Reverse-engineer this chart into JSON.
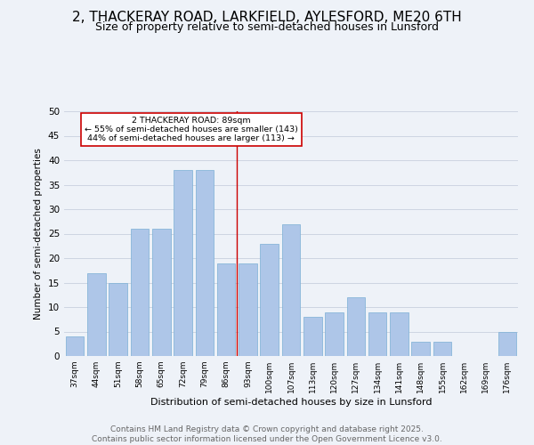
{
  "title": "2, THACKERAY ROAD, LARKFIELD, AYLESFORD, ME20 6TH",
  "subtitle": "Size of property relative to semi-detached houses in Lunsford",
  "xlabel": "Distribution of semi-detached houses by size in Lunsford",
  "ylabel": "Number of semi-detached properties",
  "categories": [
    "37sqm",
    "44sqm",
    "51sqm",
    "58sqm",
    "65sqm",
    "72sqm",
    "79sqm",
    "86sqm",
    "93sqm",
    "100sqm",
    "107sqm",
    "113sqm",
    "120sqm",
    "127sqm",
    "134sqm",
    "141sqm",
    "148sqm",
    "155sqm",
    "162sqm",
    "169sqm",
    "176sqm"
  ],
  "values": [
    4,
    17,
    15,
    26,
    26,
    38,
    38,
    19,
    19,
    23,
    27,
    8,
    9,
    12,
    9,
    9,
    3,
    3,
    0,
    0,
    5
  ],
  "bar_color": "#aec6e8",
  "bar_edge_color": "#7bafd4",
  "vline_color": "#cc0000",
  "annotation_title": "2 THACKERAY ROAD: 89sqm",
  "annotation_line1": "← 55% of semi-detached houses are smaller (143)",
  "annotation_line2": "44% of semi-detached houses are larger (113) →",
  "annotation_box_color": "#ffffff",
  "annotation_box_edge": "#cc0000",
  "ylim": [
    0,
    50
  ],
  "yticks": [
    0,
    5,
    10,
    15,
    20,
    25,
    30,
    35,
    40,
    45,
    50
  ],
  "footer_line1": "Contains HM Land Registry data © Crown copyright and database right 2025.",
  "footer_line2": "Contains public sector information licensed under the Open Government Licence v3.0.",
  "bg_color": "#eef2f8",
  "title_fontsize": 11,
  "subtitle_fontsize": 9,
  "footer_fontsize": 6.5
}
